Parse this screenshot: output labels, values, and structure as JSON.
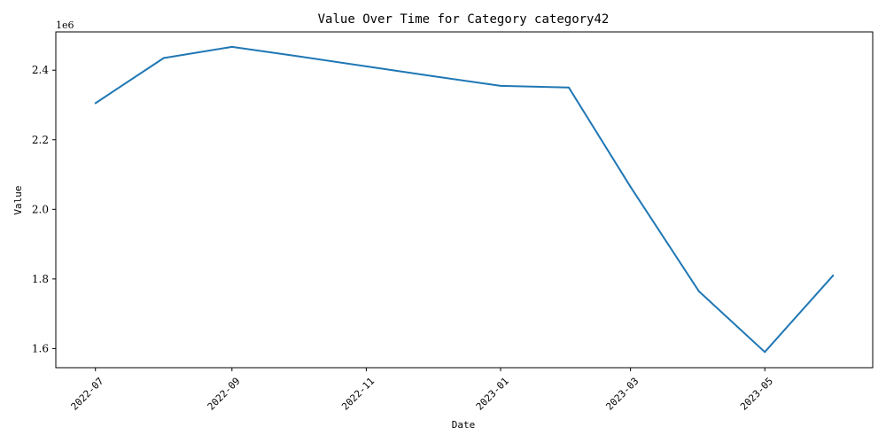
{
  "chart_data": {
    "type": "line",
    "title": "Value Over Time for Category category42",
    "xlabel": "Date",
    "ylabel": "Value",
    "y_offset_label": "1e6",
    "y_multiplier": 1000000,
    "ylim": [
      1545000,
      2510000
    ],
    "xlim": [
      "2022-06-13",
      "2023-06-19"
    ],
    "grid": false,
    "legend": "none",
    "line_color": "#1f77b4",
    "x_ticks": [
      "2022-07",
      "2022-09",
      "2022-11",
      "2023-01",
      "2023-03",
      "2023-05"
    ],
    "y_ticks": [
      "1.6",
      "1.8",
      "2.0",
      "2.2",
      "2.4"
    ],
    "series": [
      {
        "x": [
          "2022-07-01",
          "2022-08-01",
          "2022-09-01",
          "2022-10-01",
          "2022-11-01",
          "2022-12-01",
          "2023-01-01",
          "2023-02-01",
          "2023-03-01",
          "2023-04-01",
          "2023-05-01",
          "2023-06-01"
        ],
        "values": [
          2305000,
          2435000,
          2467000,
          2440000,
          2411000,
          2383000,
          2355000,
          2350000,
          2065000,
          1765000,
          1590000,
          1810000
        ]
      }
    ]
  }
}
